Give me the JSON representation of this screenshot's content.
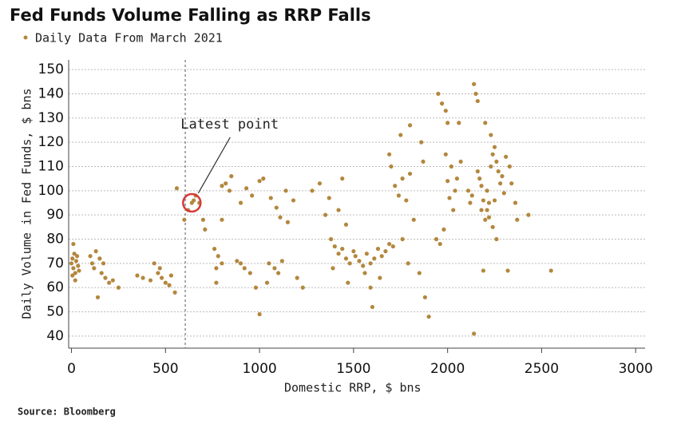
{
  "chart_data": {
    "type": "scatter",
    "title": "Fed Funds Volume Falling as RRP Falls",
    "x_label": "Domestic RRP, $ bns",
    "y_label": "Daily Volume in Fed Funds, $ bns",
    "source": "Source: Bloomberg",
    "series": [
      {
        "name": "Daily Data From March 2021",
        "color": "#b3873d",
        "x": [
          0,
          5,
          10,
          15,
          20,
          25,
          30,
          35,
          10,
          20,
          40,
          5,
          100,
          110,
          120,
          130,
          140,
          150,
          160,
          170,
          180,
          200,
          220,
          250,
          350,
          380,
          420,
          440,
          460,
          480,
          500,
          520,
          550,
          470,
          530,
          620,
          640,
          650,
          600,
          660,
          700,
          710,
          560,
          680,
          760,
          780,
          800,
          770,
          820,
          840,
          850,
          800,
          880,
          900,
          920,
          950,
          770,
          800,
          900,
          930,
          960,
          1000,
          1020,
          1000,
          1040,
          980,
          1050,
          1080,
          1100,
          1120,
          1060,
          1090,
          1110,
          1150,
          1140,
          1180,
          1200,
          1230,
          1280,
          1320,
          1350,
          1380,
          1400,
          1420,
          1440,
          1460,
          1480,
          1370,
          1420,
          1440,
          1460,
          1500,
          1390,
          1470,
          1510,
          1530,
          1550,
          1570,
          1590,
          1600,
          1610,
          1630,
          1650,
          1670,
          1690,
          1700,
          1720,
          1740,
          1760,
          1780,
          1800,
          1750,
          1800,
          1690,
          1710,
          1760,
          1790,
          1820,
          1850,
          1880,
          1900,
          1870,
          1860,
          1640,
          1560,
          1590,
          1950,
          1970,
          1990,
          2000,
          1940,
          1960,
          1980,
          2000,
          2020,
          2040,
          2010,
          2030,
          2050,
          2060,
          2070,
          1990,
          2110,
          2120,
          2130,
          2140,
          2150,
          2160,
          2170,
          2180,
          2190,
          2200,
          2210,
          2220,
          2230,
          2240,
          2250,
          2260,
          2270,
          2280,
          2290,
          2300,
          2200,
          2230,
          2160,
          2140,
          2190,
          2240,
          2260,
          2320,
          2330,
          2340,
          2360,
          2370,
          2430,
          2550,
          2310,
          2180,
          2210,
          2250,
          2220
        ],
        "values": [
          70,
          72,
          68,
          74,
          66,
          71,
          73,
          69,
          78,
          63,
          67,
          65,
          73,
          70,
          68,
          75,
          56,
          72,
          66,
          70,
          64,
          62,
          63,
          60,
          65,
          64,
          63,
          70,
          66,
          64,
          62,
          61,
          58,
          68,
          65,
          92,
          95,
          96,
          88,
          98,
          88,
          84,
          101,
          95,
          76,
          73,
          70,
          68,
          103,
          100,
          106,
          102,
          71,
          70,
          68,
          66,
          62,
          88,
          95,
          101,
          98,
          104,
          105,
          49,
          62,
          60,
          70,
          68,
          66,
          71,
          97,
          93,
          89,
          87,
          100,
          96,
          64,
          60,
          100,
          103,
          90,
          80,
          77,
          74,
          76,
          72,
          70,
          97,
          92,
          105,
          86,
          75,
          68,
          62,
          73,
          71,
          69,
          74,
          70,
          52,
          72,
          76,
          73,
          75,
          78,
          110,
          102,
          98,
          105,
          96,
          107,
          123,
          127,
          115,
          77,
          80,
          70,
          88,
          66,
          56,
          48,
          112,
          120,
          64,
          66,
          60,
          140,
          136,
          133,
          128,
          80,
          78,
          84,
          104,
          110,
          100,
          97,
          92,
          105,
          128,
          112,
          115,
          100,
          95,
          98,
          144,
          140,
          137,
          105,
          92,
          96,
          88,
          100,
          95,
          110,
          115,
          118,
          112,
          108,
          103,
          106,
          99,
          128,
          123,
          108,
          41,
          67,
          85,
          80,
          67,
          110,
          103,
          95,
          88,
          90,
          67,
          114,
          102,
          92,
          96,
          89
        ]
      }
    ],
    "annotation": {
      "text": "Latest point",
      "x": 640,
      "y": 95
    },
    "vline": 605,
    "xlim": [
      -15,
      3050
    ],
    "ylim": [
      35,
      154
    ],
    "xticks": [
      0,
      500,
      1000,
      1500,
      2000,
      2500,
      3000
    ],
    "yticks": [
      40,
      50,
      60,
      70,
      80,
      90,
      100,
      110,
      120,
      130,
      140,
      150
    ],
    "grid": true
  }
}
